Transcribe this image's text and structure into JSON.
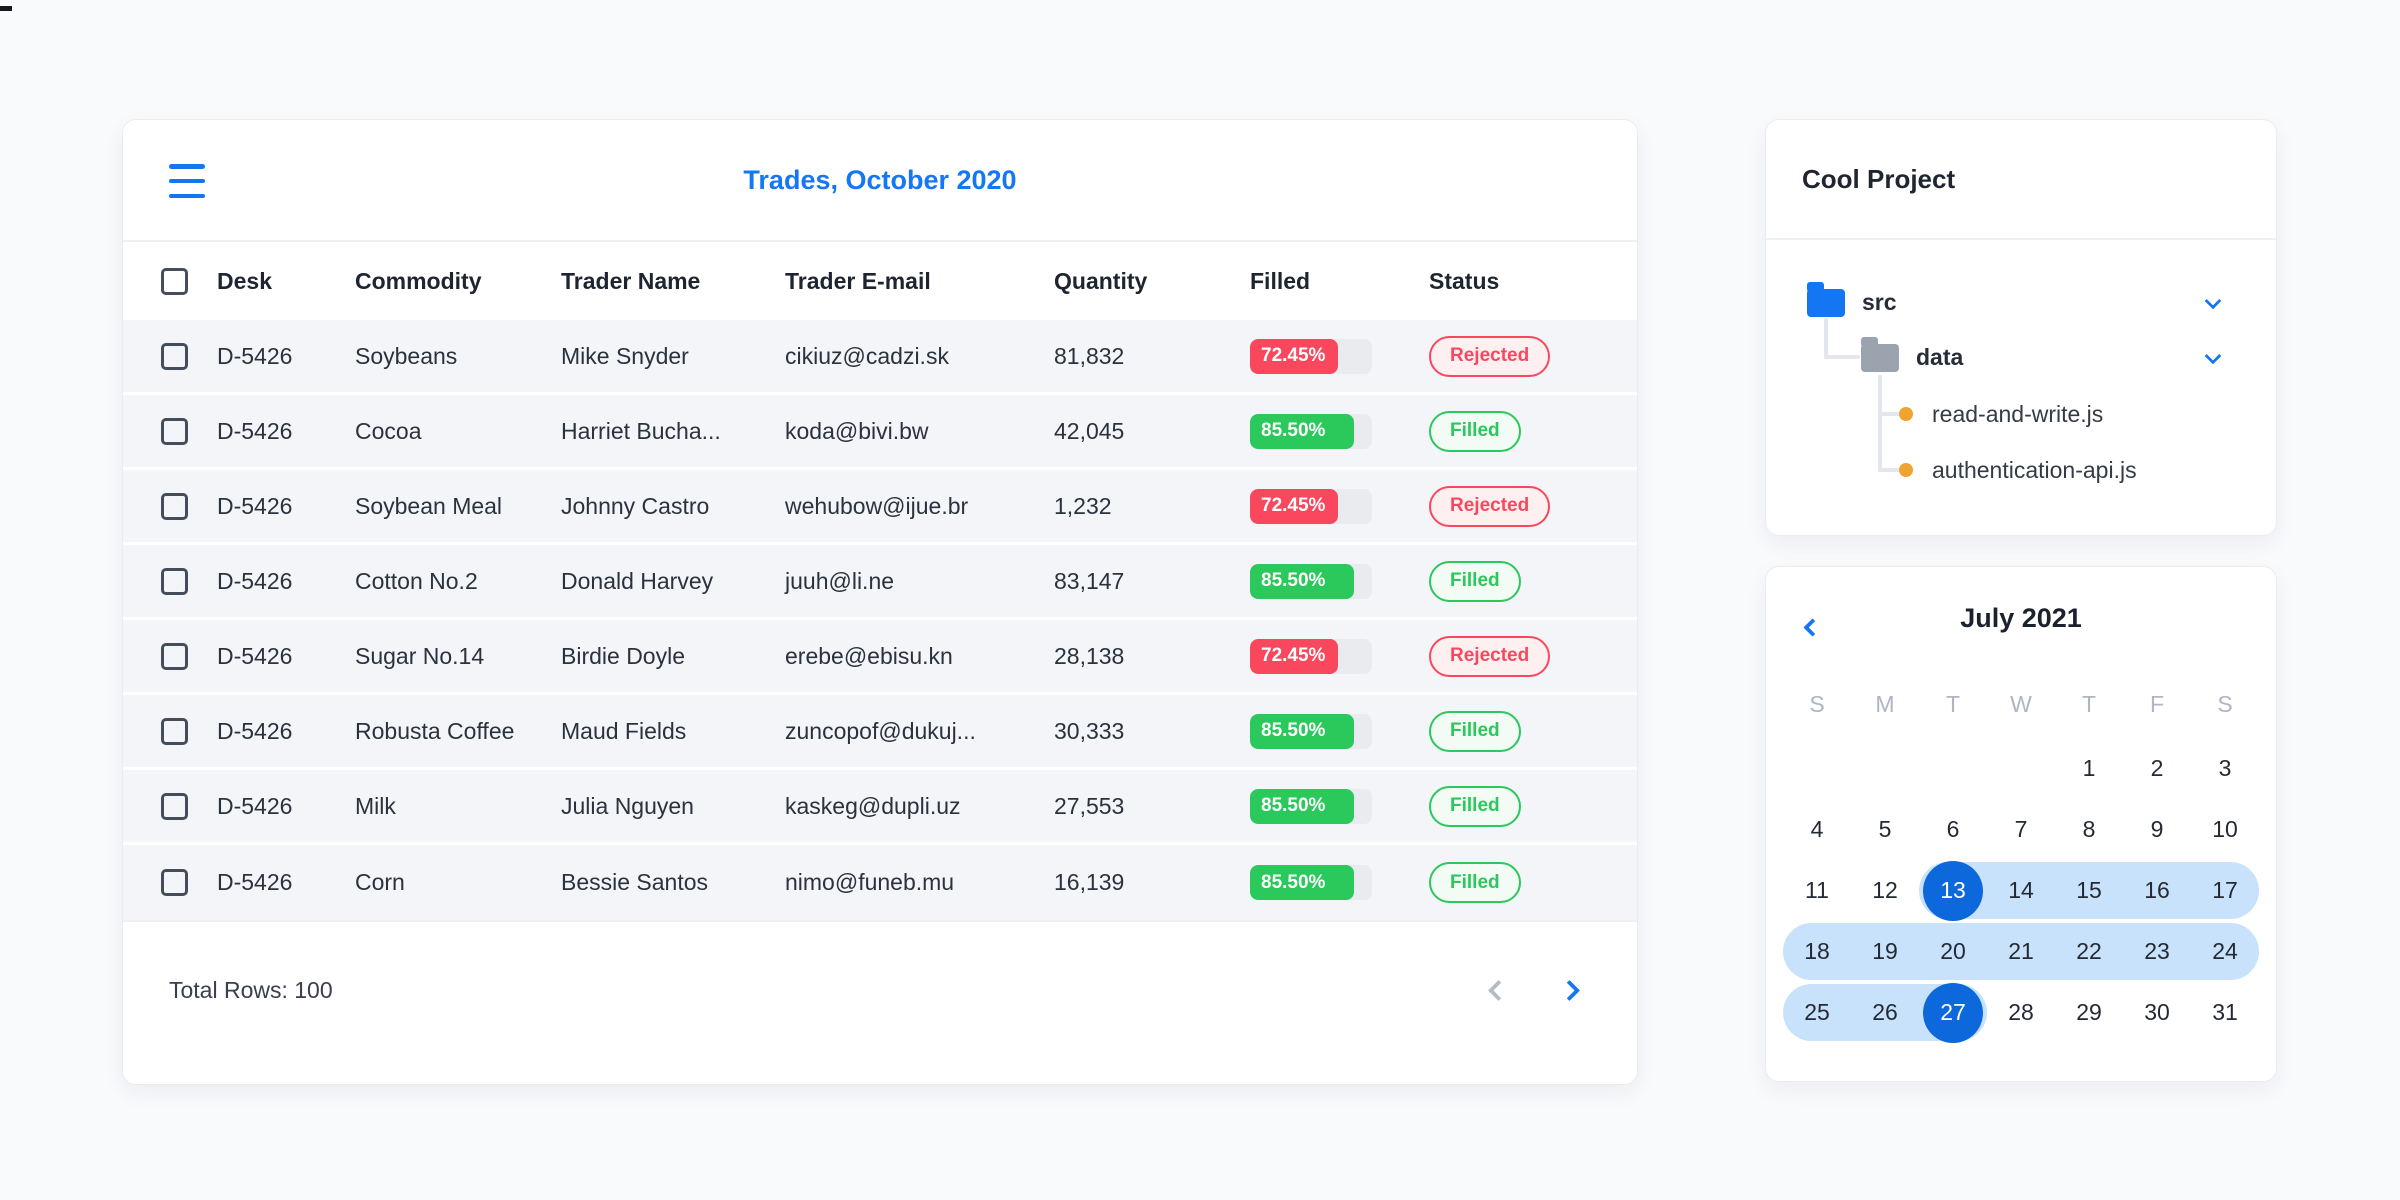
{
  "stray_glyph": "",
  "trades": {
    "title": "Trades, October 2020",
    "columns": [
      "Desk",
      "Commodity",
      "Trader Name",
      "Trader E-mail",
      "Quantity",
      "Filled",
      "Status"
    ],
    "rows": [
      {
        "desk": "D-5426",
        "commodity": "Soybeans",
        "trader": "Mike Snyder",
        "email": "cikiuz@cadzi.sk",
        "quantity": "81,832",
        "filled_label": "72.45%",
        "filled_pct": 72.45,
        "status": "Rejected",
        "status_type": "rejected"
      },
      {
        "desk": "D-5426",
        "commodity": "Cocoa",
        "trader": "Harriet Bucha...",
        "email": "koda@bivi.bw",
        "quantity": "42,045",
        "filled_label": "85.50%",
        "filled_pct": 85.5,
        "status": "Filled",
        "status_type": "filled"
      },
      {
        "desk": "D-5426",
        "commodity": "Soybean Meal",
        "trader": "Johnny Castro",
        "email": "wehubow@ijue.br",
        "quantity": "1,232",
        "filled_label": "72.45%",
        "filled_pct": 72.45,
        "status": "Rejected",
        "status_type": "rejected"
      },
      {
        "desk": "D-5426",
        "commodity": "Cotton No.2",
        "trader": "Donald Harvey",
        "email": "juuh@li.ne",
        "quantity": "83,147",
        "filled_label": "85.50%",
        "filled_pct": 85.5,
        "status": "Filled",
        "status_type": "filled"
      },
      {
        "desk": "D-5426",
        "commodity": "Sugar No.14",
        "trader": "Birdie Doyle",
        "email": "erebe@ebisu.kn",
        "quantity": "28,138",
        "filled_label": "72.45%",
        "filled_pct": 72.45,
        "status": "Rejected",
        "status_type": "rejected"
      },
      {
        "desk": "D-5426",
        "commodity": "Robusta Coffee",
        "trader": "Maud Fields",
        "email": "zuncopof@dukuj...",
        "quantity": "30,333",
        "filled_label": "85.50%",
        "filled_pct": 85.5,
        "status": "Filled",
        "status_type": "filled"
      },
      {
        "desk": "D-5426",
        "commodity": "Milk",
        "trader": "Julia Nguyen",
        "email": "kaskeg@dupli.uz",
        "quantity": "27,553",
        "filled_label": "85.50%",
        "filled_pct": 85.5,
        "status": "Filled",
        "status_type": "filled"
      },
      {
        "desk": "D-5426",
        "commodity": "Corn",
        "trader": "Bessie Santos",
        "email": "nimo@funeb.mu",
        "quantity": "16,139",
        "filled_label": "85.50%",
        "filled_pct": 85.5,
        "status": "Filled",
        "status_type": "filled"
      }
    ],
    "footer": {
      "total": "Total Rows: 100"
    }
  },
  "project": {
    "title": "Cool Project",
    "tree": {
      "folders": [
        {
          "name": "src",
          "color": "blue",
          "expanded": true
        },
        {
          "name": "data",
          "color": "gray",
          "expanded": true
        }
      ],
      "files": [
        {
          "name": "read-and-write.js"
        },
        {
          "name": "authentication-api.js"
        }
      ]
    }
  },
  "calendar": {
    "title": "July 2021",
    "weekdays": [
      "S",
      "M",
      "T",
      "W",
      "T",
      "F",
      "S"
    ],
    "weeks": [
      [
        null,
        null,
        null,
        null,
        1,
        2,
        3
      ],
      [
        4,
        5,
        6,
        7,
        8,
        9,
        10
      ],
      [
        11,
        12,
        13,
        14,
        15,
        16,
        17
      ],
      [
        18,
        19,
        20,
        21,
        22,
        23,
        24
      ],
      [
        25,
        26,
        27,
        28,
        29,
        30,
        31
      ]
    ],
    "range_start": 13,
    "range_end": 27
  },
  "icons": {
    "menu": "hamburger",
    "prev_page": "chevron-left",
    "next_page": "chevron-right",
    "tree_collapse": "chevron-down",
    "folder": "folder",
    "file_marker": "orange-dot",
    "calendar_prev": "chevron-left"
  },
  "colors": {
    "accent_blue": "#1476f2",
    "selected_day_blue": "#0d68dc",
    "range_blue": "#c9e2fc",
    "red": "#f9485e",
    "red_pill_bg": "#fef0f1",
    "green": "#2bc85c",
    "green_pill_bg": "#f2fcf5",
    "row_bg": "#f3f5f8",
    "folder_gray": "#9ba3ae",
    "bullet_orange": "#f0a32f"
  }
}
